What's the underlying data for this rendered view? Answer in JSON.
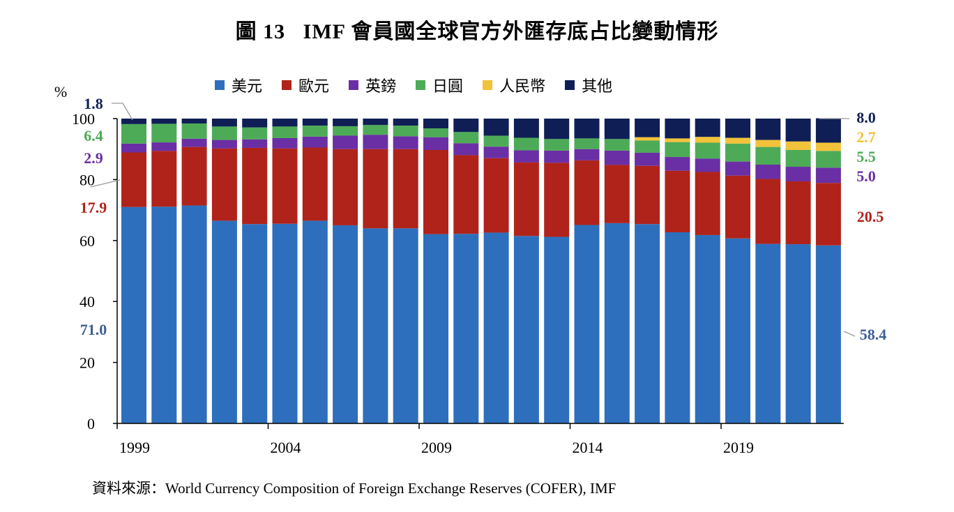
{
  "title": "圖 13   IMF 會員國全球官方外匯存底占比變動情形",
  "source": "資料來源：World Currency Composition of Foreign Exchange Reserves (COFER), IMF",
  "chart_data": {
    "type": "bar",
    "stacked": true,
    "y_unit_label": "%",
    "ylim": [
      0,
      100
    ],
    "y_ticks": [
      "0",
      "20",
      "40",
      "60",
      "80",
      "100"
    ],
    "y_tick_values": [
      0,
      20,
      40,
      60,
      80,
      100
    ],
    "x_ticks": [
      "1999",
      "2004",
      "2009",
      "2014",
      "2019"
    ],
    "categories": [
      "1999",
      "2000",
      "2001",
      "2002",
      "2003",
      "2004",
      "2005",
      "2006",
      "2007",
      "2008",
      "2009",
      "2010",
      "2011",
      "2012",
      "2013",
      "2014",
      "2015",
      "2016",
      "2017",
      "2018",
      "2019",
      "2020",
      "2021",
      "2022"
    ],
    "legend_position": "top",
    "series": [
      {
        "name": "美元",
        "color": "#2e6fbd",
        "values": [
          71.0,
          71.1,
          71.5,
          66.5,
          65.4,
          65.5,
          66.5,
          65.0,
          64.0,
          64.0,
          62.1,
          62.2,
          62.6,
          61.5,
          61.2,
          65.1,
          65.7,
          65.4,
          62.7,
          61.8,
          60.7,
          58.9,
          58.8,
          58.4
        ]
      },
      {
        "name": "歐元",
        "color": "#b0231a",
        "values": [
          17.9,
          18.3,
          19.2,
          23.7,
          25.0,
          24.7,
          24.0,
          25.0,
          26.0,
          26.0,
          27.6,
          25.8,
          24.4,
          24.1,
          24.3,
          21.2,
          19.1,
          19.1,
          20.2,
          20.7,
          20.6,
          21.3,
          20.6,
          20.5
        ]
      },
      {
        "name": "英鎊",
        "color": "#6a2fa4",
        "values": [
          2.9,
          2.8,
          2.7,
          2.8,
          2.8,
          3.4,
          3.6,
          4.4,
          4.7,
          4.2,
          4.2,
          3.9,
          3.8,
          4.0,
          4.0,
          3.7,
          4.7,
          4.3,
          4.5,
          4.4,
          4.6,
          4.7,
          4.8,
          5.0
        ]
      },
      {
        "name": "日圓",
        "color": "#4dab57",
        "values": [
          6.4,
          6.1,
          5.0,
          4.4,
          3.9,
          3.8,
          3.6,
          3.1,
          3.2,
          3.5,
          2.9,
          3.7,
          3.6,
          4.1,
          3.8,
          3.5,
          3.8,
          4.0,
          4.9,
          5.2,
          5.9,
          5.8,
          5.5,
          5.5
        ]
      },
      {
        "name": "人民幣",
        "color": "#f2c23a",
        "values": [
          0,
          0,
          0,
          0,
          0,
          0,
          0,
          0,
          0,
          0,
          0,
          0,
          0,
          0,
          0,
          0,
          0,
          1.1,
          1.2,
          1.9,
          1.9,
          2.3,
          2.8,
          2.7
        ]
      },
      {
        "name": "其他",
        "color": "#0f1f55",
        "values": [
          1.8,
          1.7,
          1.6,
          2.6,
          2.9,
          2.6,
          2.3,
          2.5,
          2.1,
          2.3,
          3.2,
          4.4,
          5.6,
          6.3,
          6.7,
          6.5,
          6.7,
          6.1,
          6.5,
          6.0,
          6.3,
          7.0,
          7.5,
          8.0
        ]
      }
    ],
    "annotations": {
      "left": [
        {
          "series": "其他",
          "text": "1.8"
        },
        {
          "series": "日圓",
          "text": "6.4"
        },
        {
          "series": "英鎊",
          "text": "2.9"
        },
        {
          "series": "歐元",
          "text": "17.9"
        },
        {
          "series": "美元",
          "text": "71.0"
        }
      ],
      "right": [
        {
          "series": "其他",
          "text": "8.0"
        },
        {
          "series": "人民幣",
          "text": "2.7"
        },
        {
          "series": "日圓",
          "text": "5.5"
        },
        {
          "series": "英鎊",
          "text": "5.0"
        },
        {
          "series": "歐元",
          "text": "20.5"
        },
        {
          "series": "美元",
          "text": "58.4"
        }
      ],
      "colors": {
        "美元": "#3d5f94",
        "歐元": "#b0231a",
        "英鎊": "#6a2fa4",
        "日圓": "#4dab57",
        "人民幣": "#f2c23a",
        "其他": "#0f1f55"
      }
    }
  }
}
